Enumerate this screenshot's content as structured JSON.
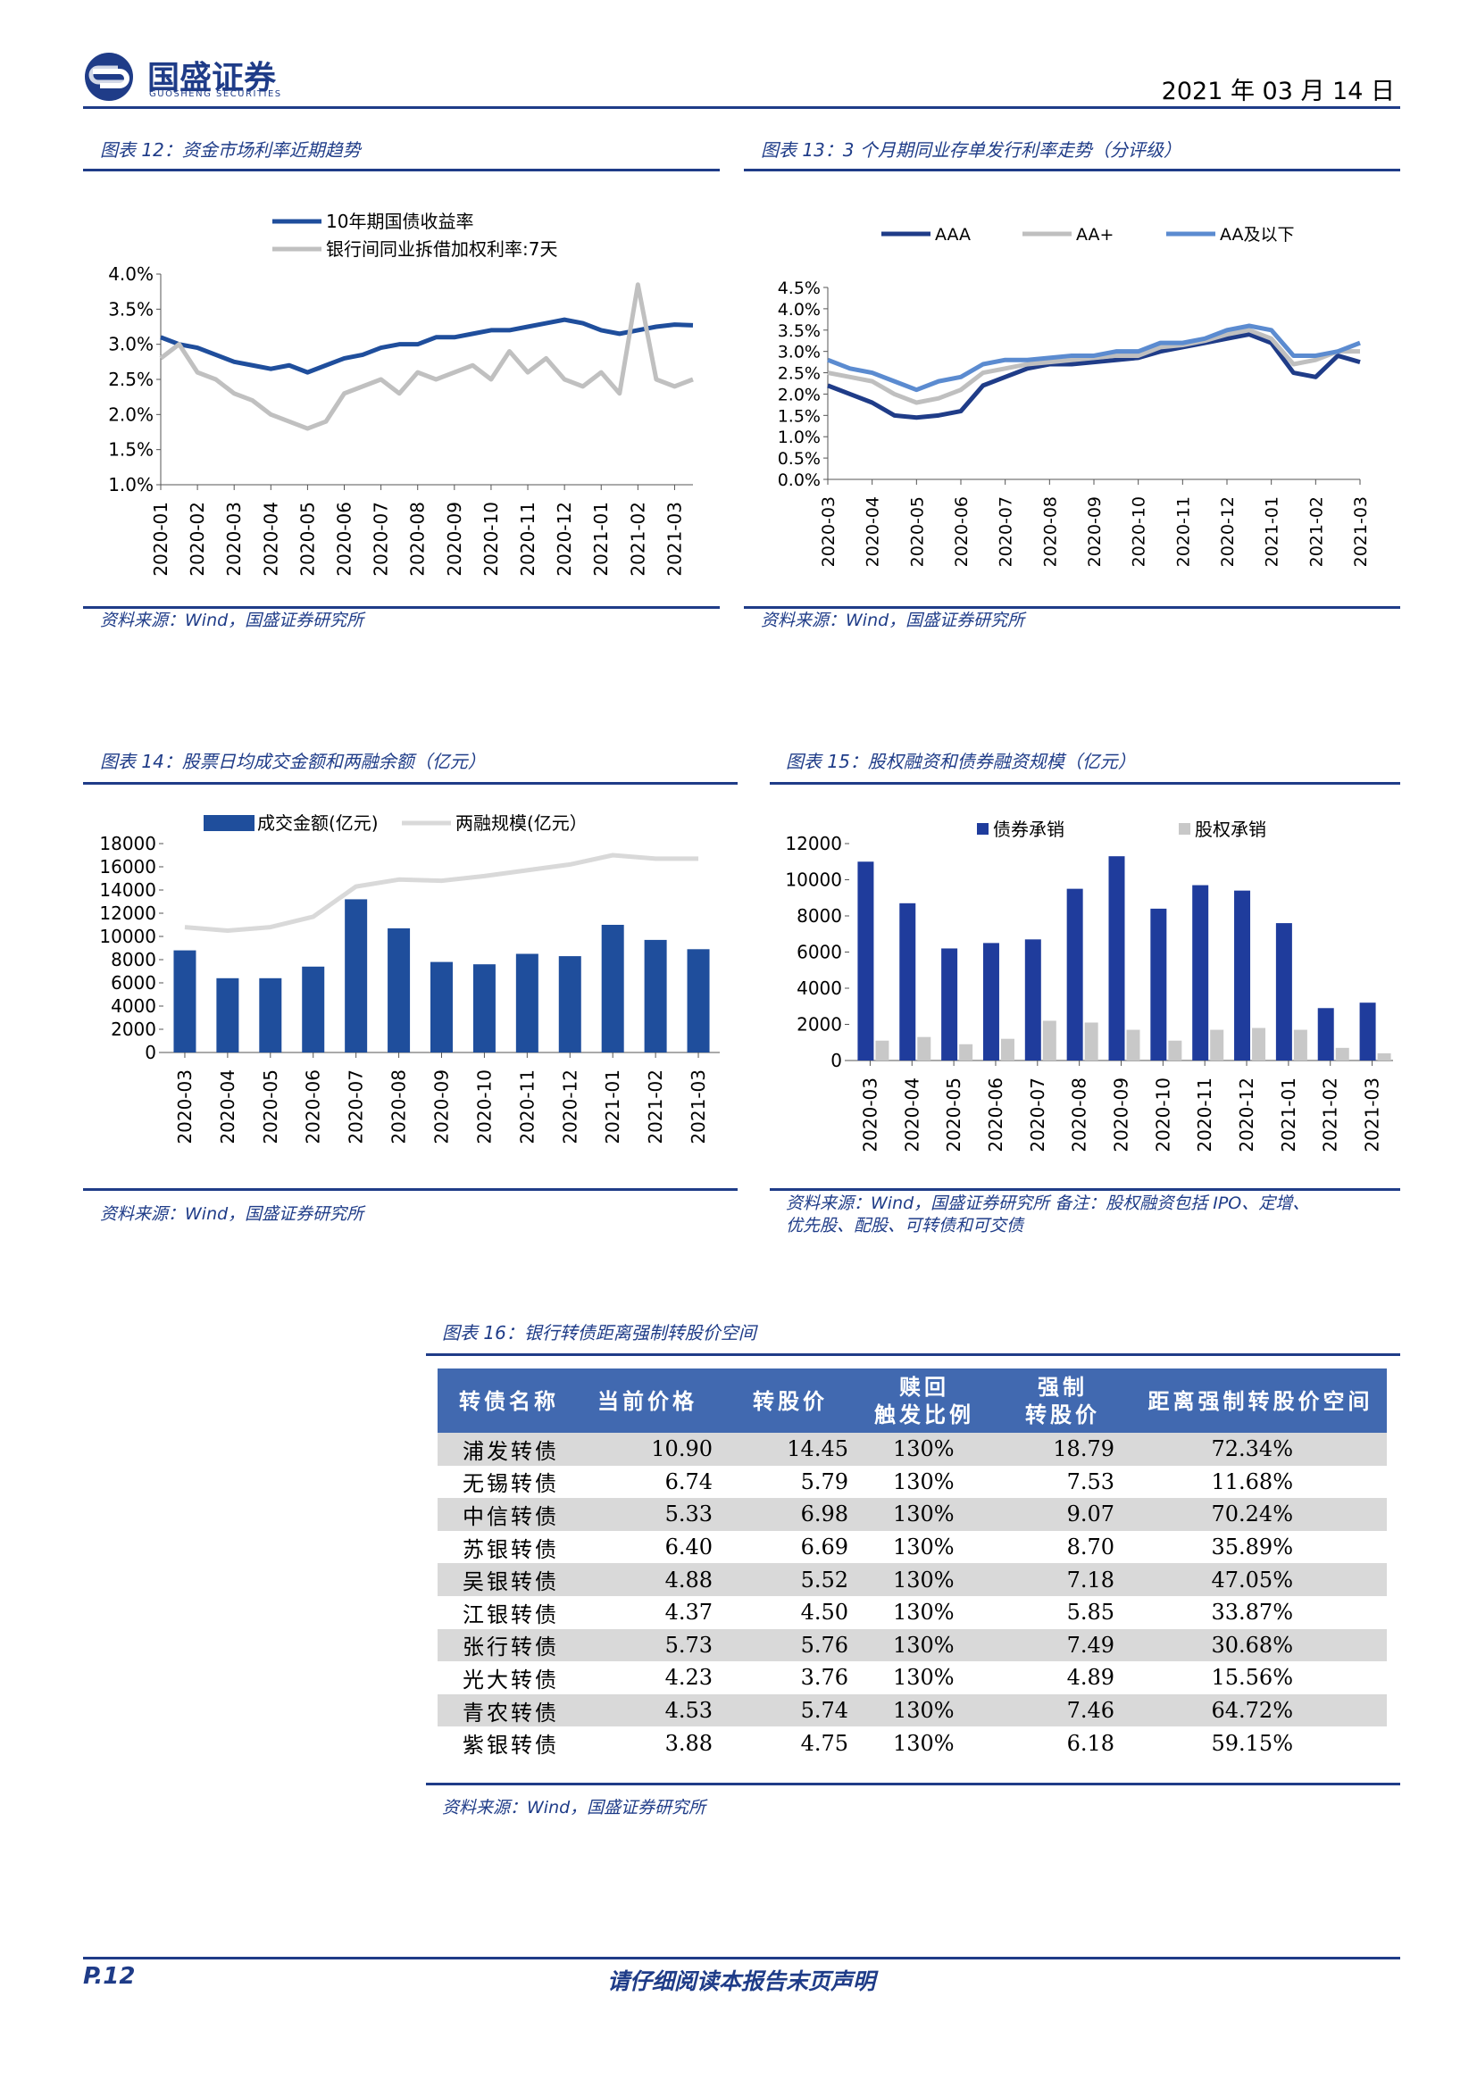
{
  "header": {
    "brand": "国盛证券",
    "brand_en": "GUOSHENG SECURITIES",
    "date": "2021 年 03 月 14 日"
  },
  "chart_data": [
    {
      "type": "line",
      "title": "图表 12：资金市场利率近期趋势",
      "source": "资料来源：Wind，国盛证券研究所",
      "categories": [
        "2020-01",
        null,
        "2020-02",
        null,
        "2020-03",
        null,
        "2020-04",
        null,
        "2020-05",
        null,
        "2020-06",
        null,
        "2020-07",
        null,
        "2020-08",
        null,
        "2020-09",
        null,
        "2020-10",
        null,
        "2020-11",
        null,
        "2020-12",
        null,
        "2021-01",
        null,
        "2021-02",
        null,
        "2021-03",
        null
      ],
      "series": [
        {
          "name": "10年期国债收益率",
          "color": "#1f4e9c",
          "values": [
            3.1,
            3.0,
            2.95,
            2.85,
            2.75,
            2.7,
            2.65,
            2.7,
            2.6,
            2.7,
            2.8,
            2.85,
            2.95,
            3.0,
            3.0,
            3.1,
            3.1,
            3.15,
            3.2,
            3.2,
            3.25,
            3.3,
            3.35,
            3.3,
            3.2,
            3.15,
            3.2,
            3.25,
            3.28,
            3.27
          ]
        },
        {
          "name": "银行间同业拆借加权利率:7天",
          "color": "#c0c0c0",
          "values": [
            2.8,
            3.0,
            2.6,
            2.5,
            2.3,
            2.2,
            2.0,
            1.9,
            1.8,
            1.9,
            2.3,
            2.4,
            2.5,
            2.3,
            2.6,
            2.5,
            2.6,
            2.7,
            2.5,
            2.9,
            2.6,
            2.8,
            2.5,
            2.4,
            2.6,
            2.3,
            3.85,
            2.5,
            2.4,
            2.5
          ]
        }
      ],
      "ylim": [
        1.0,
        4.0
      ],
      "yticks": [
        {
          "value": 1.0,
          "label": "1.0%"
        },
        {
          "value": 1.5,
          "label": "1.5%"
        },
        {
          "value": 2.0,
          "label": "2.0%"
        },
        {
          "value": 2.5,
          "label": "2.5%"
        },
        {
          "value": 3.0,
          "label": "3.0%"
        },
        {
          "value": 3.5,
          "label": "3.5%"
        },
        {
          "value": 4.0,
          "label": "4.0%"
        }
      ],
      "legend": "top-left",
      "grid": false
    },
    {
      "type": "line",
      "title": "图表 13：3 个月期同业存单发行利率走势（分评级）",
      "source": "资料来源：Wind，国盛证券研究所",
      "categories": [
        "2020-03",
        null,
        "2020-04",
        null,
        "2020-05",
        null,
        "2020-06",
        null,
        "2020-07",
        null,
        "2020-08",
        null,
        "2020-09",
        null,
        "2020-10",
        null,
        "2020-11",
        null,
        "2020-12",
        null,
        "2021-01",
        null,
        "2021-02",
        null,
        "2021-03"
      ],
      "series": [
        {
          "name": "AAA",
          "color": "#1f3c88",
          "values": [
            2.2,
            2.0,
            1.8,
            1.5,
            1.45,
            1.5,
            1.6,
            2.2,
            2.4,
            2.6,
            2.7,
            2.7,
            2.75,
            2.8,
            2.85,
            3.0,
            3.1,
            3.2,
            3.3,
            3.4,
            3.2,
            2.5,
            2.4,
            2.9,
            2.75
          ]
        },
        {
          "name": "AA+",
          "color": "#bfbfbf",
          "values": [
            2.5,
            2.4,
            2.3,
            2.0,
            1.8,
            1.9,
            2.1,
            2.5,
            2.6,
            2.7,
            2.75,
            2.8,
            2.85,
            2.9,
            2.9,
            3.1,
            3.15,
            3.25,
            3.4,
            3.5,
            3.3,
            2.7,
            2.8,
            3.0,
            3.0
          ]
        },
        {
          "name": "AA及以下",
          "color": "#5b8bd0",
          "values": [
            2.8,
            2.6,
            2.5,
            2.3,
            2.1,
            2.3,
            2.4,
            2.7,
            2.8,
            2.8,
            2.85,
            2.9,
            2.9,
            3.0,
            3.0,
            3.2,
            3.2,
            3.3,
            3.5,
            3.6,
            3.5,
            2.9,
            2.9,
            3.0,
            3.2
          ]
        }
      ],
      "ylim": [
        0,
        4.5
      ],
      "yticks": [
        {
          "value": 0,
          "label": "0.0%"
        },
        {
          "value": 0.5,
          "label": "0.5%"
        },
        {
          "value": 1.0,
          "label": "1.0%"
        },
        {
          "value": 1.5,
          "label": "1.5%"
        },
        {
          "value": 2.0,
          "label": "2.0%"
        },
        {
          "value": 2.5,
          "label": "2.5%"
        },
        {
          "value": 3.0,
          "label": "3.0%"
        },
        {
          "value": 3.5,
          "label": "3.5%"
        },
        {
          "value": 4.0,
          "label": "4.0%"
        },
        {
          "value": 4.5,
          "label": "4.5%"
        }
      ],
      "legend": "top",
      "grid": false
    },
    {
      "type": "combo",
      "title": "图表 14：股票日均成交金额和两融余额（亿元）",
      "source": "资料来源：Wind，国盛证券研究所",
      "categories": [
        "2020-03",
        "2020-04",
        "2020-05",
        "2020-06",
        "2020-07",
        "2020-08",
        "2020-09",
        "2020-10",
        "2020-11",
        "2020-12",
        "2021-01",
        "2021-02",
        "2021-03"
      ],
      "series": [
        {
          "name": "成交金额(亿元)",
          "kind": "bar",
          "color": "#1f4e9c",
          "values": [
            8800,
            6400,
            6400,
            7400,
            13200,
            10700,
            7800,
            7600,
            8500,
            8300,
            11000,
            9700,
            8900
          ]
        },
        {
          "name": "两融规模(亿元）",
          "kind": "line",
          "color": "#d9d9d9",
          "values": [
            10800,
            10500,
            10800,
            11700,
            14300,
            14900,
            14800,
            15200,
            15700,
            16200,
            17000,
            16700,
            16700
          ]
        }
      ],
      "ylim": [
        0,
        18000
      ],
      "yticks": [
        0,
        2000,
        4000,
        6000,
        8000,
        10000,
        12000,
        14000,
        16000,
        18000
      ],
      "legend": "top",
      "grid": false
    },
    {
      "type": "bar",
      "title": "图表 15：股权融资和债券融资规模（亿元）",
      "source": [
        "资料来源：Wind，国盛证券研究所 备注：股权融资包括 IPO、定增、",
        "优先股、配股、可转债和可交债"
      ],
      "categories": [
        "2020-03",
        "2020-04",
        "2020-05",
        "2020-06",
        "2020-07",
        "2020-08",
        "2020-09",
        "2020-10",
        "2020-11",
        "2020-12",
        "2021-01",
        "2021-02",
        "2021-03"
      ],
      "series": [
        {
          "name": "债券承销",
          "color": "#1f3c9c",
          "values": [
            11000,
            8700,
            6200,
            6500,
            6700,
            9500,
            11300,
            8400,
            9700,
            9400,
            7600,
            2900,
            3200
          ]
        },
        {
          "name": "股权承销",
          "color": "#c8c8c8",
          "values": [
            1100,
            1300,
            900,
            1200,
            2200,
            2100,
            1700,
            1100,
            1700,
            1800,
            1700,
            700,
            400
          ]
        }
      ],
      "ylim": [
        0,
        12000
      ],
      "yticks": [
        0,
        2000,
        4000,
        6000,
        8000,
        10000,
        12000
      ],
      "legend": "top",
      "grid": false
    }
  ],
  "table": {
    "title": "图表 16：银行转债距离强制转股价空间",
    "source": "资料来源：Wind，国盛证券研究所",
    "headers": [
      [
        "转债名称"
      ],
      [
        "当前价格"
      ],
      [
        "转股价"
      ],
      [
        "赎回",
        "触发比例"
      ],
      [
        "强制",
        "转股价"
      ],
      [
        "距离强制转股价空间"
      ]
    ],
    "rows": [
      [
        "浦发转债",
        "10.90",
        "14.45",
        "130%",
        "18.79",
        "72.34%"
      ],
      [
        "无锡转债",
        "6.74",
        "5.79",
        "130%",
        "7.53",
        "11.68%"
      ],
      [
        "中信转债",
        "5.33",
        "6.98",
        "130%",
        "9.07",
        "70.24%"
      ],
      [
        "苏银转债",
        "6.40",
        "6.69",
        "130%",
        "8.70",
        "35.89%"
      ],
      [
        "吴银转债",
        "4.88",
        "5.52",
        "130%",
        "7.18",
        "47.05%"
      ],
      [
        "江银转债",
        "4.37",
        "4.50",
        "130%",
        "5.85",
        "33.87%"
      ],
      [
        "张行转债",
        "5.73",
        "5.76",
        "130%",
        "7.49",
        "30.68%"
      ],
      [
        "光大转债",
        "4.23",
        "3.76",
        "130%",
        "4.89",
        "15.56%"
      ],
      [
        "青农转债",
        "4.53",
        "5.74",
        "130%",
        "7.46",
        "64.72%"
      ],
      [
        "紫银转债",
        "3.88",
        "4.75",
        "130%",
        "6.18",
        "59.15%"
      ]
    ]
  },
  "footer": {
    "page": "P.12",
    "notice": "请仔细阅读本报告末页声明"
  }
}
